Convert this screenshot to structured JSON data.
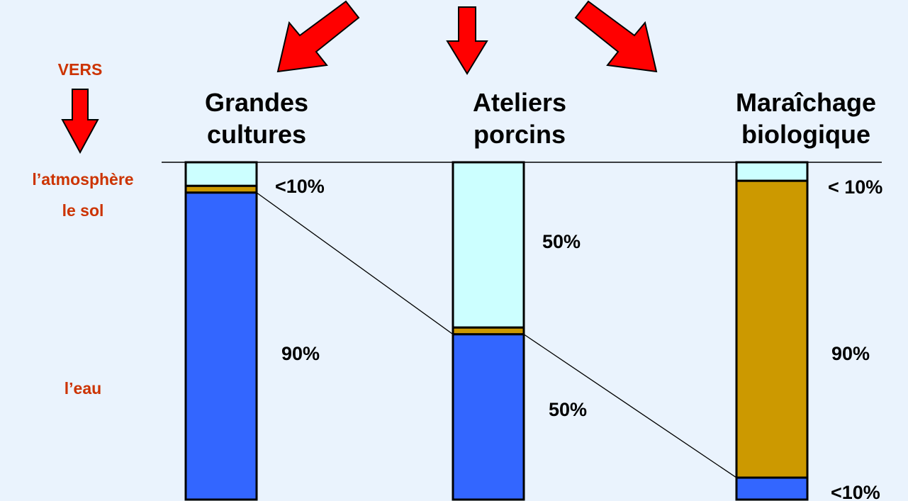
{
  "legend": {
    "header": "VERS",
    "atmosphere": "l’atmosphère",
    "soil": "le sol",
    "water": "l’eau"
  },
  "colors": {
    "atmosphere": "#ccffff",
    "soil": "#cc9900",
    "water": "#3366ff",
    "arrow": "#ff0000",
    "legend_text": "#cc3300"
  },
  "chart_data": {
    "type": "bar",
    "stacked": true,
    "categories": [
      {
        "line1": "Grandes",
        "line2": "cultures"
      },
      {
        "line1": "Ateliers",
        "line2": "porcins"
      },
      {
        "line1": "Maraîchage",
        "line2": "biologique"
      }
    ],
    "series": [
      {
        "name": "l’atmosphère",
        "values": [
          7,
          49,
          5.5
        ]
      },
      {
        "name": "le sol",
        "values": [
          2,
          2,
          88
        ]
      },
      {
        "name": "l’eau",
        "values": [
          91,
          49,
          6.5
        ]
      }
    ],
    "ylim": [
      0,
      100
    ],
    "annotations": [
      [
        "<10%",
        "90%"
      ],
      [
        "50%",
        "50%"
      ],
      [
        "< 10%",
        "90%",
        "<10%"
      ]
    ]
  }
}
